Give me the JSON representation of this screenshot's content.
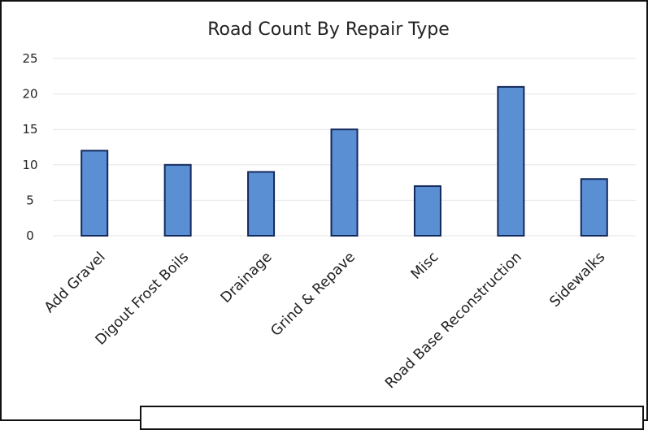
{
  "chart_data": {
    "type": "bar",
    "title": "Road Count By Repair Type",
    "xlabel": "",
    "ylabel": "",
    "categories": [
      "Add Gravel",
      "Digout Frost Boils",
      "Drainage",
      "Grind & Repave",
      "Misc",
      "Road Base Reconstruction",
      "Sidewalks"
    ],
    "values": [
      12,
      10,
      9,
      15,
      7,
      21,
      8
    ],
    "ylim": [
      0,
      25
    ],
    "yticks": [
      "0",
      "5",
      "10",
      "15",
      "20",
      "25"
    ],
    "grid": true,
    "legend": "none",
    "colors": {
      "bar_fill": "#5b8fd4",
      "bar_edge": "#13295c"
    }
  }
}
